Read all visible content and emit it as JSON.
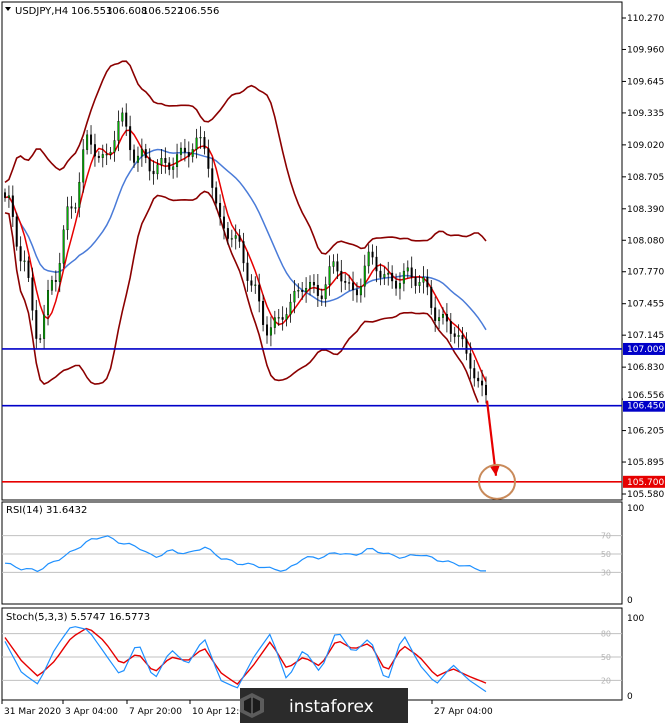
{
  "chart_data": [
    {
      "type": "candlestick",
      "symbol_header": "USDJPY,H4",
      "ohlc_header": [
        "106.553",
        "106.608",
        "106.522",
        "106.556"
      ],
      "y_ticks": [
        105.58,
        105.895,
        106.205,
        106.515,
        106.83,
        107.145,
        107.455,
        107.77,
        108.08,
        108.39,
        108.705,
        109.02,
        109.335,
        109.645,
        109.96,
        110.27
      ],
      "y_tick_labels": [
        "105.580",
        "105.895",
        "106.205",
        "106.515",
        "106.830",
        "107.145",
        "107.455",
        "107.770",
        "108.080",
        "108.390",
        "108.705",
        "109.020",
        "109.335",
        "109.645",
        "109.960",
        "110.270"
      ],
      "ylim": [
        105.58,
        110.27
      ],
      "x_labels": [
        "31 Mar 2020",
        "3 Apr 04:00",
        "7 Apr 20:00",
        "10 Apr 12:00",
        "27 Apr 04:00"
      ],
      "current_price": 106.556,
      "current_price_label": "106.556",
      "horizontal_levels": [
        {
          "value": 107.009,
          "label": "107.009",
          "color": "#0000c8"
        },
        {
          "value": 106.45,
          "label": "106.450",
          "color": "#0000c8"
        },
        {
          "value": 105.7,
          "label": "105.700",
          "color": "#e60000"
        }
      ],
      "close_path": [
        108.5,
        107.9,
        107.2,
        107.7,
        108.4,
        109.1,
        108.8,
        109.3,
        108.9,
        108.75,
        108.9,
        108.95,
        109.0,
        108.3,
        108.0,
        107.6,
        107.2,
        107.35,
        107.7,
        107.55,
        107.8,
        107.6,
        107.85,
        107.7,
        107.75,
        107.65,
        107.4,
        107.2,
        106.85,
        106.58
      ],
      "annotation": {
        "type": "arrow",
        "from_price": 106.5,
        "to_price": 105.76,
        "target_price": 105.7,
        "color": "#e60000"
      }
    },
    {
      "type": "line",
      "indicator": "RSI",
      "header": "RSI(14) 31.6432",
      "y_ticks": [
        0,
        30,
        50,
        70,
        100
      ],
      "y_tick_labels": [
        "0",
        "30",
        "50",
        "70",
        "100"
      ],
      "levels": [
        30,
        50,
        70
      ],
      "ylim": [
        0,
        100
      ],
      "values": [
        40,
        34,
        32,
        42,
        52,
        64,
        70,
        62,
        58,
        46,
        54,
        50,
        58,
        46,
        40,
        38,
        34,
        32,
        46,
        46,
        52,
        48,
        56,
        50,
        46,
        50,
        44,
        40,
        36,
        31.6
      ]
    },
    {
      "type": "line",
      "indicator": "Stochastic",
      "header": "Stoch(5,3,3) 5.5747 16.5773",
      "y_ticks": [
        0,
        20,
        50,
        80,
        100
      ],
      "y_tick_labels": [
        "0",
        "20",
        "50",
        "80",
        "100"
      ],
      "levels": [
        20,
        50,
        80
      ],
      "ylim": [
        0,
        100
      ],
      "main_values": [
        70,
        30,
        15,
        60,
        90,
        85,
        55,
        25,
        70,
        20,
        60,
        40,
        75,
        20,
        10,
        50,
        80,
        20,
        60,
        30,
        85,
        55,
        75,
        15,
        80,
        40,
        15,
        40,
        20,
        5.6
      ],
      "signal_values": [
        75,
        45,
        25,
        45,
        75,
        88,
        70,
        40,
        55,
        30,
        50,
        45,
        62,
        30,
        15,
        40,
        70,
        35,
        50,
        38,
        72,
        60,
        68,
        30,
        65,
        50,
        25,
        35,
        25,
        16.6
      ]
    }
  ],
  "watermark": "instaforex"
}
